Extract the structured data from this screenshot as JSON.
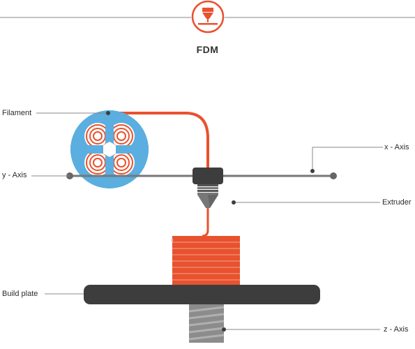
{
  "header": {
    "title": "FDM",
    "icon": "fdm-nozzle-icon"
  },
  "labels": {
    "filament": "Filament",
    "x_axis": "x - Axis",
    "y_axis": "y - Axis",
    "extruder": "Extruder",
    "build_plate": "Build plate",
    "z_axis": "z - Axis"
  },
  "colors": {
    "accent": "#e8522e",
    "spool": "#5aaee0",
    "dark": "#3d3d3d",
    "rail": "#777777",
    "line": "#8a8a8a",
    "screw": "#8c8c8c"
  }
}
